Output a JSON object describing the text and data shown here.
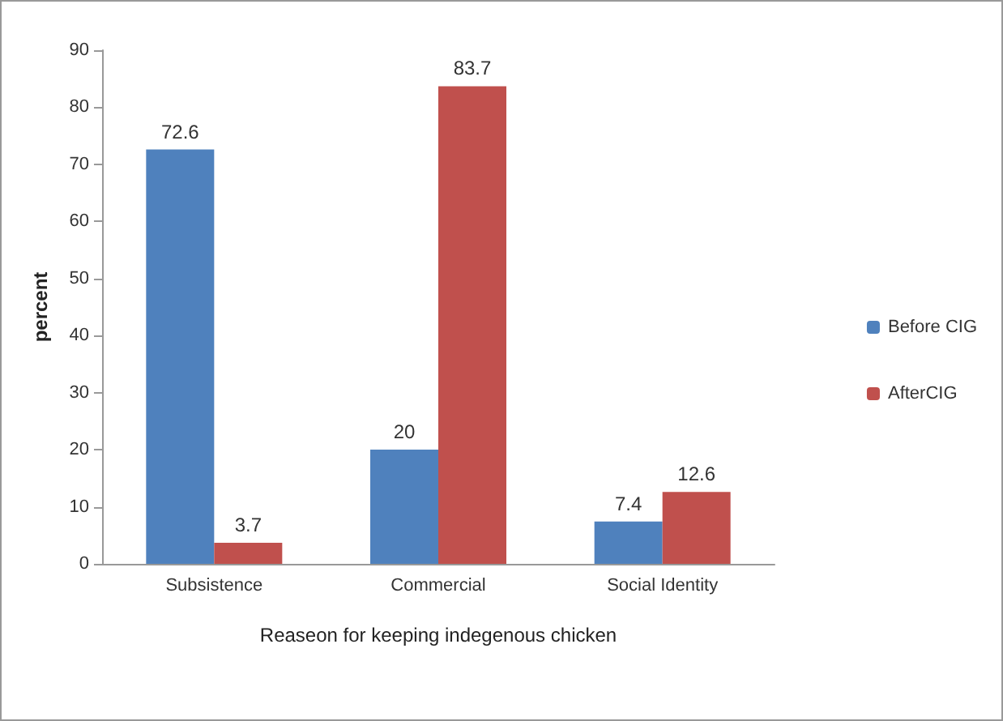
{
  "chart_data": {
    "type": "bar",
    "xlabel": "Reaseon for keeping indegenous chicken",
    "ylabel": "percent",
    "categories": [
      "Subsistence",
      "Commercial",
      "Social Identity"
    ],
    "series": [
      {
        "name": "Before CIG",
        "color": "#4f81bd",
        "values": [
          72.6,
          20,
          7.4
        ]
      },
      {
        "name": "AfterCIG",
        "color": "#c0504d",
        "values": [
          3.7,
          83.7,
          12.6
        ]
      }
    ],
    "ylim": [
      0,
      90
    ],
    "yticks": [
      0,
      10,
      20,
      30,
      40,
      50,
      60,
      70,
      80,
      90
    ],
    "data_labels": true,
    "legend": "right",
    "grid": false
  }
}
